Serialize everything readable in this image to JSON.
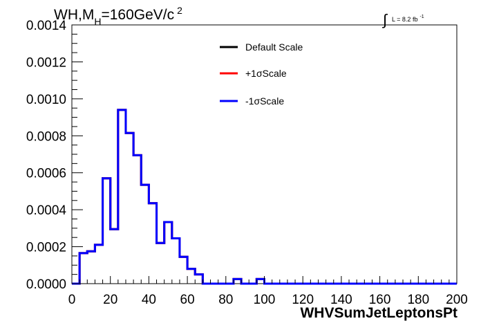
{
  "chart_data": {
    "type": "step",
    "title": {
      "main_a": "WH,M",
      "sub": "H",
      "main_b": "=160GeV/c",
      "sup": "2"
    },
    "lumi": {
      "integral": "∫",
      "text": "L = 8.2 fb",
      "sup": "-1"
    },
    "xlabel": "WHVSumJetLeptonsPt",
    "ylabel": "",
    "xlim": [
      0,
      200
    ],
    "ylim": [
      0,
      0.0014
    ],
    "x_ticks": [
      "0",
      "20",
      "40",
      "60",
      "80",
      "100",
      "120",
      "140",
      "160",
      "180",
      "200"
    ],
    "y_ticks": [
      "0.0000",
      "0.0002",
      "0.0004",
      "0.0006",
      "0.0008",
      "0.0010",
      "0.0012",
      "0.0014"
    ],
    "bin_width": 4,
    "bin_edges_start": 0,
    "series": [
      {
        "name": "Default Scale",
        "color": "#000000",
        "values": [
          0.0,
          0.000165,
          0.000175,
          0.00021,
          0.00057,
          0.000295,
          0.00094,
          0.000815,
          0.000695,
          0.000535,
          0.000435,
          0.00022,
          0.000333,
          0.000245,
          0.000145,
          8e-05,
          5e-05,
          0.0,
          0.0,
          0.0,
          0.0,
          2.5e-05,
          0.0,
          0.0,
          2.5e-05,
          0.0,
          0.0,
          0.0,
          0.0,
          0.0,
          0.0,
          0.0,
          0.0,
          0.0,
          0.0,
          0.0,
          0.0,
          0.0,
          0.0,
          0.0,
          0.0,
          0.0,
          0.0,
          0.0,
          0.0,
          0.0,
          0.0,
          0.0,
          0.0,
          0.0
        ]
      },
      {
        "name": "+1σScale",
        "color": "#ff0000",
        "values": [
          0.0,
          0.000165,
          0.000175,
          0.00021,
          0.00057,
          0.000295,
          0.00094,
          0.000815,
          0.000695,
          0.000535,
          0.000435,
          0.00022,
          0.000333,
          0.000245,
          0.000145,
          8e-05,
          5e-05,
          0.0,
          0.0,
          0.0,
          0.0,
          2.5e-05,
          0.0,
          0.0,
          2.5e-05,
          0.0,
          0.0,
          0.0,
          0.0,
          0.0,
          0.0,
          0.0,
          0.0,
          0.0,
          0.0,
          0.0,
          0.0,
          0.0,
          0.0,
          0.0,
          0.0,
          0.0,
          0.0,
          0.0,
          0.0,
          0.0,
          0.0,
          0.0,
          0.0,
          0.0
        ]
      },
      {
        "name": "-1σScale",
        "color": "#0000ff",
        "values": [
          0.0,
          0.000165,
          0.000175,
          0.00021,
          0.00057,
          0.000295,
          0.00094,
          0.000815,
          0.000695,
          0.000535,
          0.000435,
          0.00022,
          0.000333,
          0.000245,
          0.000145,
          8e-05,
          5e-05,
          0.0,
          0.0,
          0.0,
          0.0,
          2.5e-05,
          0.0,
          0.0,
          2.5e-05,
          0.0,
          0.0,
          0.0,
          0.0,
          0.0,
          0.0,
          0.0,
          0.0,
          0.0,
          0.0,
          0.0,
          0.0,
          0.0,
          0.0,
          0.0,
          0.0,
          0.0,
          0.0,
          0.0,
          0.0,
          0.0,
          0.0,
          0.0,
          0.0,
          0.0
        ]
      }
    ],
    "legend_position": "top-right",
    "grid": false
  }
}
